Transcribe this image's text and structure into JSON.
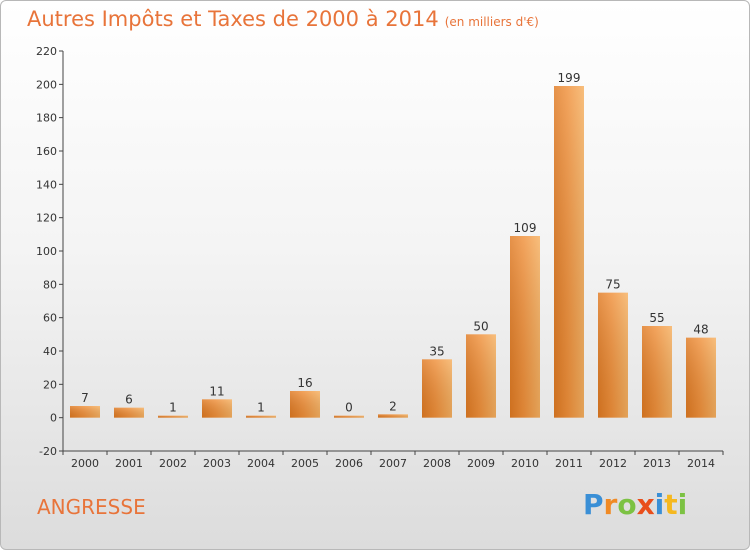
{
  "chart_data": {
    "type": "bar",
    "title": "Autres Impôts et Taxes de 2000 à 2014",
    "subtitle": "(en milliers d'€)",
    "xlabel": "",
    "ylabel": "",
    "categories": [
      "2000",
      "2001",
      "2002",
      "2003",
      "2004",
      "2005",
      "2006",
      "2007",
      "2008",
      "2009",
      "2010",
      "2011",
      "2012",
      "2013",
      "2014"
    ],
    "values": [
      7,
      6,
      1,
      11,
      1,
      16,
      0,
      2,
      35,
      50,
      109,
      199,
      75,
      55,
      48
    ],
    "data_labels": [
      "7",
      "6",
      "1",
      "11",
      "1",
      "16",
      "0",
      "2",
      "35",
      "50",
      "109",
      "199",
      "75",
      "55",
      "48"
    ],
    "ylim": [
      -20,
      220
    ],
    "yticks": [
      -20,
      0,
      20,
      40,
      60,
      80,
      100,
      120,
      140,
      160,
      180,
      200,
      220
    ],
    "ytick_labels": [
      "-20",
      "0",
      "20",
      "40",
      "60",
      "80",
      "100",
      "120",
      "140",
      "160",
      "180",
      "200",
      "220"
    ],
    "grid": false,
    "bar_color": "#f0903a"
  },
  "commune": "ANGRESSE",
  "logo": {
    "letters": [
      "P",
      "r",
      "o",
      "x",
      "i",
      "t",
      "i"
    ],
    "colors": [
      "#3a8fd6",
      "#f08a24",
      "#7cc243",
      "#e94e1b",
      "#3a8fd6",
      "#f5b820",
      "#7cc243"
    ]
  },
  "colors": {
    "accent": "#e8743a",
    "bar": "#f0903a"
  }
}
